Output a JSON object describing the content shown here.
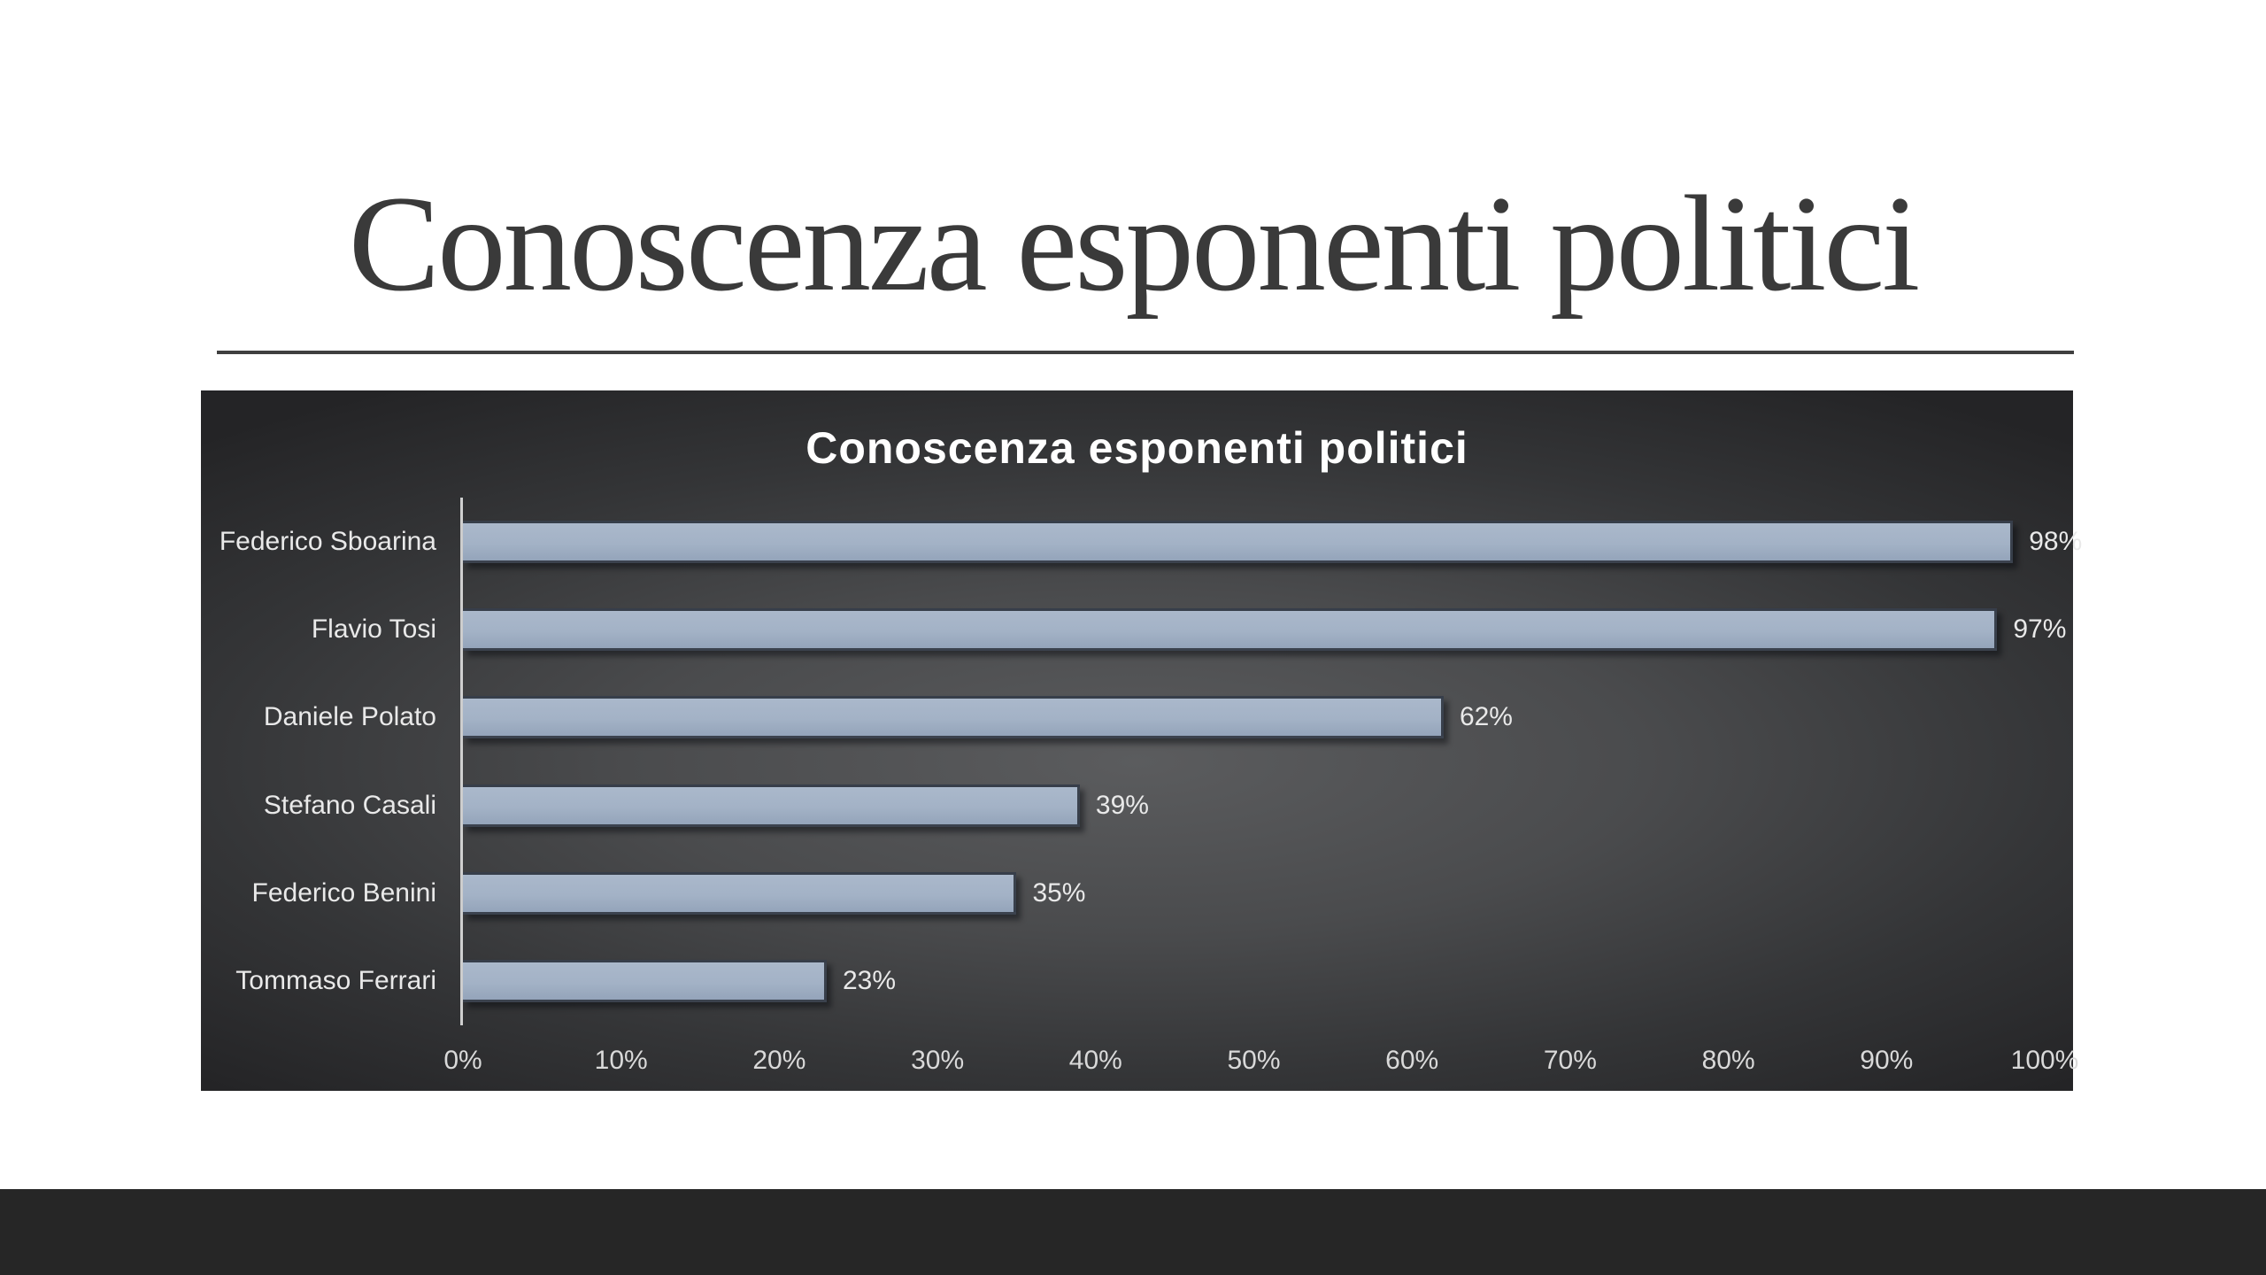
{
  "slide": {
    "title": "Conoscenza esponenti politici"
  },
  "chart_data": {
    "type": "bar",
    "orientation": "horizontal",
    "title": "Conoscenza esponenti politici",
    "categories": [
      "Federico Sboarina",
      "Flavio Tosi",
      "Daniele Polato",
      "Stefano Casali",
      "Federico Benini",
      "Tommaso Ferrari"
    ],
    "values": [
      98,
      97,
      62,
      39,
      35,
      23
    ],
    "value_labels": [
      "98%",
      "97%",
      "62%",
      "39%",
      "35%",
      "23%"
    ],
    "x_ticks": [
      "0%",
      "10%",
      "20%",
      "30%",
      "40%",
      "50%",
      "60%",
      "70%",
      "80%",
      "90%",
      "100%"
    ],
    "xlim": [
      0,
      100
    ],
    "xlabel": "",
    "ylabel": "",
    "grid": false,
    "legend": false,
    "data_labels_position": "outside-end"
  },
  "colors": {
    "slide_background": "#ffffff",
    "title_text": "#3a3a3a",
    "divider": "#3f3f3f",
    "chart_bg_center": "#5b5c5e",
    "chart_bg_edge": "#242426",
    "chart_title_text": "#ffffff",
    "bar_fill_top": "#aab8cb",
    "bar_fill_bottom": "#94a4ba",
    "label_text": "#e9e9e9",
    "tick_text": "#d9d9d9",
    "axis_line": "#cfcfcf",
    "footer": "#262626"
  }
}
